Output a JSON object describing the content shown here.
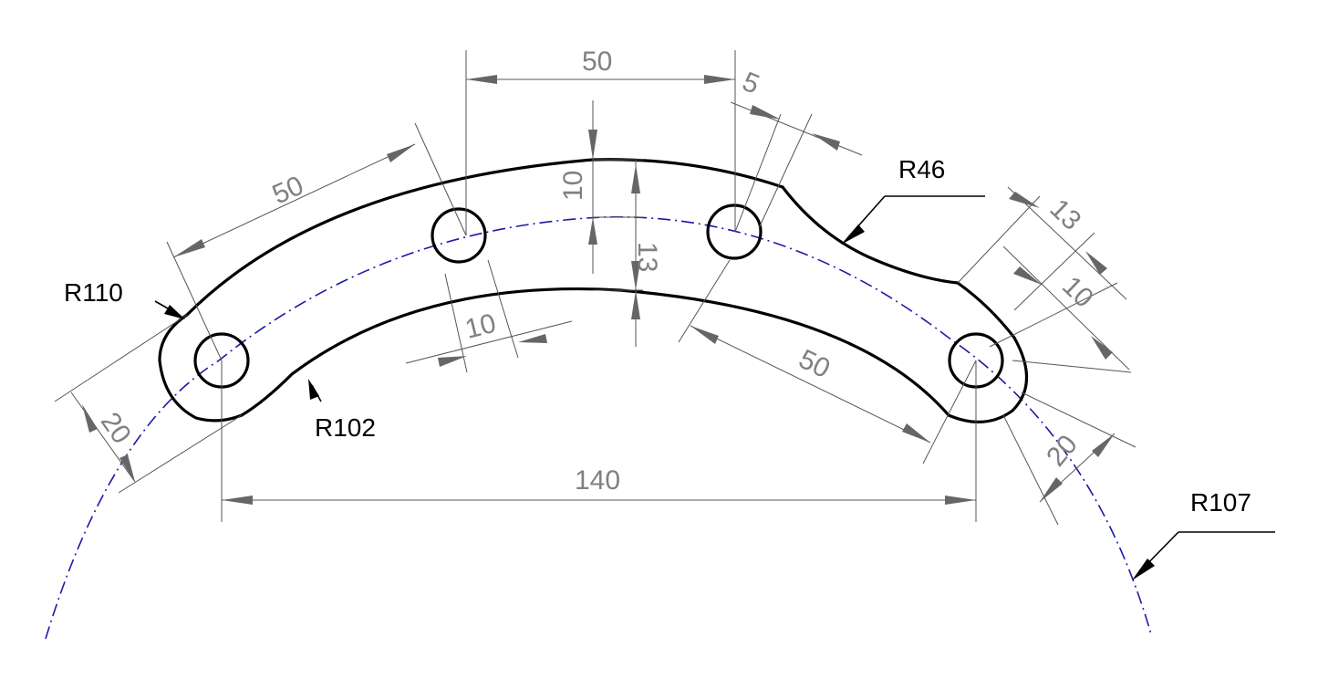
{
  "dimensions": {
    "top_span": "50",
    "top_offset": "5",
    "left_arc": "50",
    "right_arc": "50",
    "top_width": "10",
    "section_depth": "13",
    "bottom_slot": "10",
    "right_13": "13",
    "right_10": "10",
    "left_20": "20",
    "right_20": "20",
    "overall": "140"
  },
  "radii": {
    "r46": "R46",
    "r110": "R110",
    "r102": "R102",
    "r107": "R107"
  }
}
